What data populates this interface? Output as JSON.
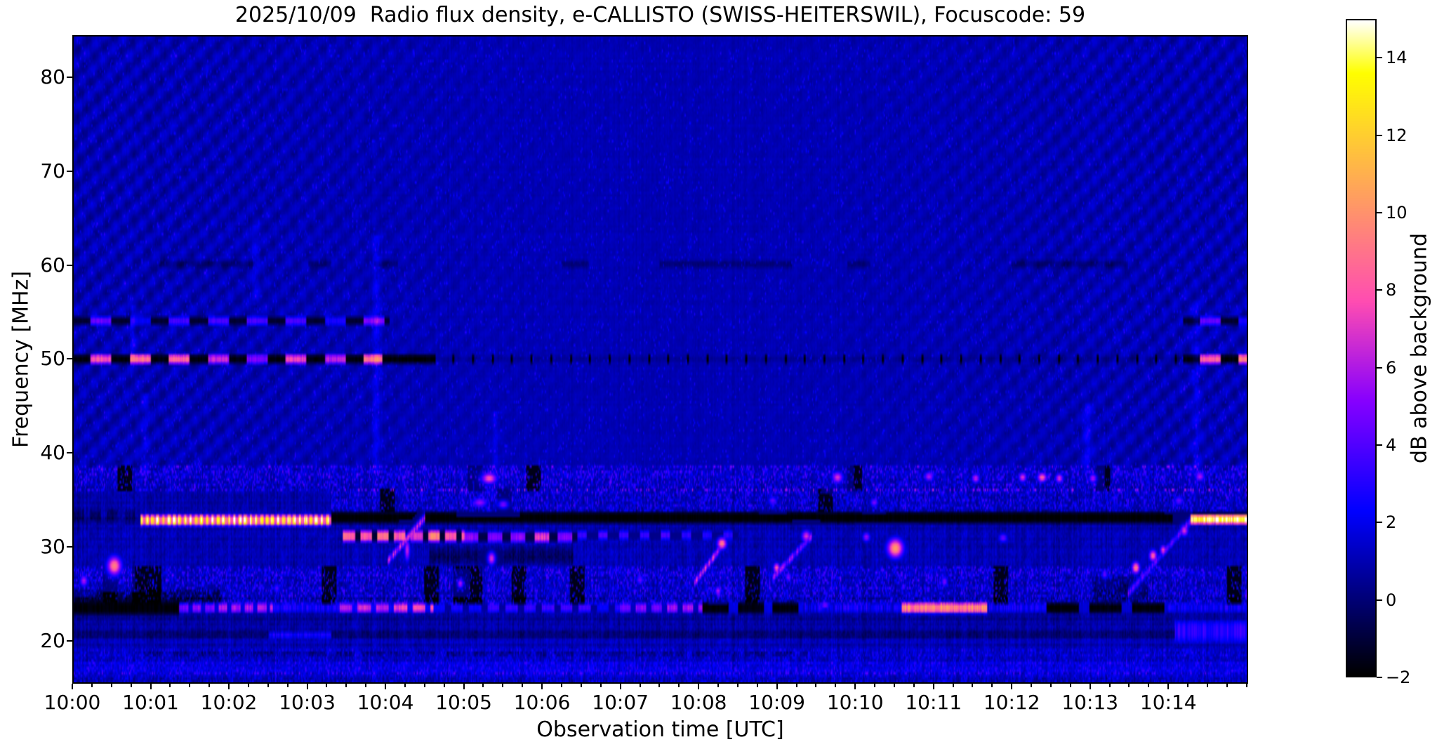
{
  "chart_data": {
    "type": "heatmap",
    "subtype": "radio-spectrogram",
    "title": "2025/10/09  Radio flux density, e-CALLISTO (SWISS-HEITERSWIL), Focuscode: 59",
    "meta": {
      "date": "2025/10/09",
      "network": "e-CALLISTO",
      "station": "SWISS-HEITERSWIL",
      "focuscode": "59"
    },
    "xlabel": "Observation time [UTC]",
    "ylabel": "Frequency [MHz]",
    "x_start": "10:00",
    "x_range_minutes": [
      0,
      15.02
    ],
    "x_ticks": [
      "10:00",
      "10:01",
      "10:02",
      "10:03",
      "10:04",
      "10:05",
      "10:06",
      "10:07",
      "10:08",
      "10:09",
      "10:10",
      "10:11",
      "10:12",
      "10:13",
      "10:14"
    ],
    "x_minor_interval_min": 0.25,
    "y_ticks": [
      80,
      70,
      60,
      50,
      40,
      30,
      20
    ],
    "y_range_mhz": [
      15.44,
      84.48
    ],
    "grid": "off",
    "colorbar": {
      "label": "dB above background",
      "ticks": [
        14,
        12,
        10,
        8,
        6,
        4,
        2,
        0,
        -2
      ],
      "vmin": -2,
      "vmax": 15,
      "colormap": "gnuplot2",
      "colormap_samples": {
        "-2": "#000000",
        "0": "#000078",
        "2": "#0000f0",
        "4": "#5200ff",
        "6": "#b01ae6",
        "8": "#ff56aa",
        "10": "#ff946b",
        "12": "#ffcf30",
        "14": "#ffff40",
        "15": "#ffffff"
      }
    },
    "background_model": {
      "base_db": 0.95,
      "noise_db": 0.3,
      "boundary_mhz": 38,
      "wave_amp_db": 0.28,
      "wave_fade_center": true,
      "column_noise_lower_db": 0.45,
      "column_noise_upper_db": 0.16,
      "description": "dark blue background with wavy diagonal interference moire above 38 MHz and strong vertical striation noise below 38 MHz"
    },
    "features": [
      {
        "type": "speckle",
        "t0": 0,
        "t1": 15.02,
        "f0": 38.5,
        "f1": 84,
        "amp": 1.0,
        "p": 0.06,
        "note": "sparse faint blue dots in upper band"
      },
      {
        "type": "speckle",
        "t0": 0,
        "t1": 15.02,
        "f0": 36.2,
        "f1": 38.2,
        "amp": 1.6,
        "p": 0.4,
        "blackp": 0.02,
        "note": "noisy RFI band ~37 MHz"
      },
      {
        "type": "speckle",
        "t0": 3.3,
        "t1": 15.02,
        "f0": 33.9,
        "f1": 35.9,
        "amp": 1.4,
        "p": 0.45,
        "blackp": 0.03,
        "note": "noise band above 33 MHz line"
      },
      {
        "type": "speckle",
        "t0": 0,
        "t1": 15.02,
        "f0": 24.0,
        "f1": 27.6,
        "amp": 1.5,
        "p": 0.45,
        "blackp": 0.05,
        "note": "speckled 24-27.5 MHz region with black dropouts"
      },
      {
        "type": "speckle",
        "t0": 0,
        "t1": 15.02,
        "f0": 16.3,
        "f1": 18.6,
        "amp": 0.9,
        "p": 0.4
      },
      {
        "type": "speckle",
        "t0": 0,
        "t1": 15.02,
        "f0": 14.8,
        "f1": 16.2,
        "amp": 0.8,
        "p": 0.5
      },
      {
        "type": "band",
        "f": 22.3,
        "hw": 0.35,
        "t0": 0,
        "t1": 15.02,
        "v": -0.5,
        "mode": "add"
      },
      {
        "type": "band",
        "f": 24.2,
        "hw": 0.3,
        "t0": 0,
        "t1": 15.02,
        "v": -0.4,
        "mode": "add"
      },
      {
        "type": "band",
        "f": 20.4,
        "hw": 0.45,
        "t0": 0,
        "t1": 15.02,
        "v": -0.8,
        "mode": "add",
        "note": "dark lane ~20 MHz"
      },
      {
        "type": "band",
        "f": 18.4,
        "hw": 0.3,
        "t0": 0.9,
        "t1": 9.4,
        "v": -1.0,
        "mode": "add",
        "on": 15,
        "off": 6,
        "gapv": -0.2,
        "note": "dark dashed line ~18 MHz"
      },
      {
        "type": "band",
        "f": 16.9,
        "hw": 0.8,
        "t0": 0,
        "t1": 15.02,
        "v": 0.5,
        "mode": "add",
        "note": "brighter blue strip near bottom"
      },
      {
        "type": "band",
        "f": 15.0,
        "hw": 0.7,
        "t0": 0,
        "t1": 15.02,
        "v": -0.3,
        "mode": "add"
      },
      {
        "type": "band",
        "f": 60.2,
        "hw": 0.4,
        "v": -1.0,
        "mode": "add",
        "segments": [
          [
            1.1,
            2.3
          ],
          [
            3.0,
            3.3
          ],
          [
            3.85,
            4.15
          ],
          [
            6.25,
            6.6
          ],
          [
            7.5,
            9.2
          ],
          [
            9.9,
            10.2
          ],
          [
            12.0,
            13.5
          ]
        ],
        "note": "faint dark dashes at 60 MHz"
      },
      {
        "type": "band",
        "f": 54.1,
        "hw": 0.45,
        "t0": 0,
        "t1": 4.05,
        "v": 3.6,
        "vjit": 1.4,
        "on": 16,
        "off": 14,
        "ph": 17,
        "gapv": -1.2,
        "mode": "set",
        "note": "blue dashed carrier 54 MHz"
      },
      {
        "type": "band",
        "f": 54.1,
        "hw": 0.45,
        "t0": 14.2,
        "t1": 15.02,
        "v": 3.6,
        "vjit": 1.0,
        "on": 16,
        "off": 14,
        "ph": 17,
        "gapv": -1.2,
        "mode": "set"
      },
      {
        "type": "band",
        "f": 50.0,
        "hw": 0.5,
        "t0": 0,
        "t1": 3.95,
        "v": 7.2,
        "vjit": 2.4,
        "on": 16,
        "off": 14,
        "ph": 17,
        "gapv": -1.8,
        "mode": "set",
        "note": "bright magenta dashed carrier 50 MHz"
      },
      {
        "type": "band",
        "f": 50.0,
        "hw": 0.5,
        "t0": 3.95,
        "t1": 4.6,
        "v": -1.9,
        "mode": "set"
      },
      {
        "type": "band",
        "f": 50.0,
        "hw": 0.4,
        "t0": 4.6,
        "t1": 14.2,
        "v": -0.4,
        "mode": "add"
      },
      {
        "type": "band",
        "f": 50.0,
        "hw": 0.5,
        "t0": 4.6,
        "t1": 14.2,
        "v": -2,
        "mode": "set",
        "on": 1.6,
        "off": 13.4,
        "gapv": null,
        "note": "periodic short black ticks on 50 MHz lane"
      },
      {
        "type": "band",
        "f": 50.0,
        "hw": 0.5,
        "t0": 14.2,
        "t1": 15.02,
        "v": 7.5,
        "vjit": 2.0,
        "on": 16,
        "off": 14,
        "ph": 17,
        "gapv": -1.8,
        "mode": "set"
      },
      {
        "type": "band",
        "f": 33.2,
        "hw": 0.7,
        "t0": 0,
        "t1": 0.85,
        "v": -1.2,
        "mode": "add",
        "on": 8,
        "off": 5,
        "gapv": -0.3
      },
      {
        "type": "band",
        "f": 32.7,
        "hw": 0.55,
        "t0": 0.85,
        "t1": 3.3,
        "v": 14.3,
        "vjit": 1.2,
        "on": 2.1,
        "off": 2.1,
        "gapv": 8.5,
        "mode": "set",
        "note": "saturated yellow-white oscillating emission 33 MHz 10:01-10:03.3"
      },
      {
        "type": "band",
        "f": 33.0,
        "hw": 0.65,
        "t0": 3.3,
        "t1": 15.02,
        "v": -2,
        "mode": "set",
        "note": "black suppressed band 33 MHz after 10:03.3"
      },
      {
        "type": "band",
        "f": 31.0,
        "hw": 0.6,
        "t0": 3.45,
        "t1": 5.0,
        "v": 7.8,
        "vjit": 1.8,
        "on": 9,
        "off": 4,
        "gapv": -1.2,
        "mode": "set",
        "note": "orange dashes 31 MHz"
      },
      {
        "type": "band",
        "f": 30.9,
        "hw": 0.55,
        "t0": 5.0,
        "t1": 6.45,
        "v": 6.2,
        "vjit": 1.6,
        "on": 11,
        "off": 7,
        "gapv": -0.8,
        "mode": "set"
      },
      {
        "type": "band",
        "f": 31.1,
        "hw": 0.45,
        "t0": 6.45,
        "t1": 8.5,
        "v": 2.8,
        "vjit": 1.2,
        "on": 7,
        "off": 9,
        "gapv": 0.3,
        "mode": "set"
      },
      {
        "type": "band",
        "f": 28.9,
        "hw": 0.9,
        "t0": 4.55,
        "t1": 6.4,
        "v": -1.4,
        "mode": "add"
      },
      {
        "type": "band",
        "f": 24.4,
        "hw": 0.9,
        "t0": 0,
        "t1": 1.9,
        "v": -1.6,
        "mode": "add"
      },
      {
        "type": "band",
        "f": 25.3,
        "hw": 1.4,
        "t0": 13.05,
        "t1": 13.75,
        "v": -1.5,
        "mode": "add"
      },
      {
        "type": "band",
        "f": 23.3,
        "hw": 0.8,
        "t0": 0,
        "t1": 1.35,
        "v": -1.9,
        "mode": "set",
        "note": "black segment 23 MHz"
      },
      {
        "type": "band",
        "f": 23.3,
        "hw": 0.5,
        "t0": 1.35,
        "t1": 2.55,
        "v": 5.0,
        "vjit": 1.3,
        "on": 7,
        "off": 3,
        "gapv": 1.8,
        "mode": "set"
      },
      {
        "type": "band",
        "f": 23.3,
        "hw": 0.45,
        "t0": 2.55,
        "t1": 3.4,
        "v": 2.6,
        "vjit": 0.9,
        "mode": "set"
      },
      {
        "type": "band",
        "f": 23.3,
        "hw": 0.5,
        "t0": 3.4,
        "t1": 4.6,
        "v": 6.3,
        "vjit": 1.4,
        "on": 10,
        "off": 4,
        "gapv": 2.5,
        "mode": "set",
        "note": "pink streak 23 MHz"
      },
      {
        "type": "band",
        "f": 23.3,
        "hw": 0.45,
        "t0": 4.6,
        "t1": 7.0,
        "v": 2.6,
        "vjit": 1.1,
        "on": 9,
        "off": 5,
        "gapv": 0.6,
        "mode": "set"
      },
      {
        "type": "band",
        "f": 23.3,
        "hw": 0.5,
        "t0": 7.0,
        "t1": 8.05,
        "v": 4.8,
        "vjit": 1.4,
        "on": 8,
        "off": 4,
        "gapv": 1.2,
        "mode": "set"
      },
      {
        "type": "band",
        "f": 23.3,
        "hw": 0.65,
        "t0": 8.05,
        "t1": 9.35,
        "v": -1.8,
        "vjit": 0.3,
        "on": 20,
        "off": 7,
        "gapv": 1.8,
        "mode": "set"
      },
      {
        "type": "band",
        "f": 23.3,
        "hw": 0.45,
        "t0": 9.35,
        "t1": 10.6,
        "v": 2.2,
        "vjit": 1.2,
        "mode": "set"
      },
      {
        "type": "band",
        "f": 23.3,
        "hw": 0.55,
        "t0": 10.6,
        "t1": 11.7,
        "v": 9.3,
        "vjit": 1.2,
        "mode": "set",
        "note": "bright orange streak 23 MHz 10:10.6-10:11.7"
      },
      {
        "type": "band",
        "f": 23.3,
        "hw": 0.45,
        "t0": 11.7,
        "t1": 12.45,
        "v": 2.3,
        "vjit": 1.0,
        "mode": "set"
      },
      {
        "type": "band",
        "f": 23.3,
        "hw": 0.6,
        "t0": 12.45,
        "t1": 14.0,
        "v": -1.9,
        "vjit": 0.3,
        "on": 25,
        "off": 8,
        "gapv": 1.5,
        "mode": "set"
      },
      {
        "type": "band",
        "f": 23.3,
        "hw": 0.45,
        "t0": 14.0,
        "t1": 15.02,
        "v": 2.2,
        "vjit": 0.9,
        "mode": "set"
      },
      {
        "type": "band",
        "f": 20.4,
        "hw": 0.35,
        "t0": 2.5,
        "t1": 3.3,
        "v": 2.6,
        "vjit": 0.7,
        "mode": "set"
      },
      {
        "type": "band",
        "f": 20.8,
        "hw": 1.1,
        "t0": 14.1,
        "t1": 15.02,
        "v": 3.0,
        "vjit": 0.8,
        "mode": "set",
        "note": "blue patch ~20 MHz bottom right"
      },
      {
        "type": "blob",
        "t": 0.52,
        "f": 27.8,
        "rt": 0.09,
        "rf": 1.0,
        "v": 9.5,
        "note": "orange blob 10:00.5"
      },
      {
        "type": "blob",
        "t": 0.13,
        "f": 26.2,
        "rt": 0.05,
        "rf": 0.6,
        "v": 6.0
      },
      {
        "type": "blob",
        "t": 5.32,
        "f": 37.2,
        "rt": 0.1,
        "rf": 0.6,
        "v": 8.0
      },
      {
        "type": "blob",
        "t": 9.78,
        "f": 37.3,
        "rt": 0.07,
        "rf": 0.6,
        "v": 7.0
      },
      {
        "type": "blob",
        "t": 10.95,
        "f": 37.4,
        "rt": 0.06,
        "rf": 0.5,
        "v": 6.0
      },
      {
        "type": "blob",
        "t": 11.55,
        "f": 37.2,
        "rt": 0.05,
        "rf": 0.5,
        "v": 6.5
      },
      {
        "type": "blob",
        "t": 12.15,
        "f": 37.3,
        "rt": 0.05,
        "rf": 0.5,
        "v": 7.0
      },
      {
        "type": "blob",
        "t": 12.4,
        "f": 37.3,
        "rt": 0.06,
        "rf": 0.5,
        "v": 8.5
      },
      {
        "type": "blob",
        "t": 12.62,
        "f": 37.2,
        "rt": 0.05,
        "rf": 0.5,
        "v": 7.0
      },
      {
        "type": "blob",
        "t": 13.05,
        "f": 37.2,
        "rt": 0.05,
        "rf": 0.5,
        "v": 6.0
      },
      {
        "type": "blob",
        "t": 14.42,
        "f": 37.4,
        "rt": 0.06,
        "rf": 0.5,
        "v": 6.0
      },
      {
        "type": "blob",
        "t": 5.2,
        "f": 34.6,
        "rt": 0.1,
        "rf": 0.5,
        "v": 5.5
      },
      {
        "type": "blob",
        "t": 5.5,
        "f": 34.4,
        "rt": 0.07,
        "rf": 0.45,
        "v": 5.0
      },
      {
        "type": "blob",
        "t": 8.95,
        "f": 34.8,
        "rt": 0.06,
        "rf": 0.45,
        "v": 4.5
      },
      {
        "type": "blob",
        "t": 10.25,
        "f": 34.6,
        "rt": 0.05,
        "rf": 0.45,
        "v": 5.0
      },
      {
        "type": "blob",
        "t": 14.15,
        "f": 34.8,
        "rt": 0.06,
        "rf": 0.5,
        "v": 4.5
      },
      {
        "type": "blob",
        "t": 10.52,
        "f": 29.7,
        "rt": 0.1,
        "rf": 1.0,
        "v": 10.5,
        "note": "strong orange blob 10:10.5 ~30 MHz"
      },
      {
        "type": "blob",
        "t": 10.15,
        "f": 30.9,
        "rt": 0.05,
        "rf": 0.5,
        "v": 5.5
      },
      {
        "type": "blob",
        "t": 11.9,
        "f": 30.8,
        "rt": 0.06,
        "rf": 0.5,
        "v": 4.5
      },
      {
        "type": "blob",
        "t": 5.35,
        "f": 28.6,
        "rt": 0.05,
        "rf": 0.7,
        "v": 7.0
      },
      {
        "type": "blob",
        "t": 4.95,
        "f": 25.9,
        "rt": 0.04,
        "rf": 0.5,
        "v": 6.0
      },
      {
        "type": "blob",
        "t": 8.25,
        "f": 25.1,
        "rt": 0.04,
        "rf": 0.5,
        "v": 6.0
      },
      {
        "type": "blob",
        "t": 9.15,
        "f": 26.6,
        "rt": 0.04,
        "rf": 0.5,
        "v": 5.0
      },
      {
        "type": "blob",
        "t": 11.15,
        "f": 26.1,
        "rt": 0.04,
        "rf": 0.5,
        "v": 5.0
      },
      {
        "type": "blob",
        "t": 13.2,
        "f": 26.9,
        "rt": 0.04,
        "rf": 0.5,
        "v": 4.5
      },
      {
        "type": "blob",
        "t": 9.62,
        "f": 23.6,
        "rt": 0.06,
        "rf": 0.4,
        "v": 5.0
      },
      {
        "type": "blob",
        "t": 2.6,
        "f": 25.4,
        "rt": 0.04,
        "rf": 0.5,
        "v": 4.0
      },
      {
        "type": "blob",
        "t": 7.25,
        "f": 26.3,
        "rt": 0.05,
        "rf": 0.5,
        "v": 4.5
      },
      {
        "type": "drift",
        "t0": 4.02,
        "f0": 28.3,
        "t1": 4.5,
        "f1": 33.0,
        "w": 0.5,
        "v": 6.5,
        "note": "drifting burst 10:04"
      },
      {
        "type": "blob",
        "t": 4.27,
        "f": 29.5,
        "rt": 0.035,
        "rf": 1.2,
        "v": 6.5
      },
      {
        "type": "drift",
        "t0": 7.95,
        "f0": 26.0,
        "t1": 8.35,
        "f1": 30.5,
        "w": 0.5,
        "v": 7.0,
        "note": "drifting burst 10:08"
      },
      {
        "type": "blob",
        "t": 8.3,
        "f": 30.2,
        "rt": 0.06,
        "rf": 0.6,
        "v": 9.5
      },
      {
        "type": "drift",
        "t0": 8.95,
        "f0": 26.5,
        "t1": 9.45,
        "f1": 31.0,
        "w": 0.5,
        "v": 5.5,
        "note": "drifting burst 10:09"
      },
      {
        "type": "blob",
        "t": 9.38,
        "f": 31.0,
        "rt": 0.06,
        "rf": 0.6,
        "v": 7.0
      },
      {
        "type": "blob",
        "t": 9.0,
        "f": 27.6,
        "rt": 0.04,
        "rf": 0.5,
        "v": 8.5
      },
      {
        "type": "drift",
        "t0": 13.5,
        "f0": 24.8,
        "t1": 14.3,
        "f1": 32.6,
        "w": 0.5,
        "v": 4.5,
        "note": "rising burst 10:13.5-10:14.3"
      },
      {
        "type": "blob",
        "t": 13.6,
        "f": 27.6,
        "rt": 0.05,
        "rf": 0.6,
        "v": 9.5
      },
      {
        "type": "blob",
        "t": 13.82,
        "f": 28.9,
        "rt": 0.05,
        "rf": 0.6,
        "v": 8.5
      },
      {
        "type": "blob",
        "t": 13.95,
        "f": 29.5,
        "rt": 0.04,
        "rf": 0.5,
        "v": 7.5
      },
      {
        "type": "blob",
        "t": 14.22,
        "f": 31.6,
        "rt": 0.05,
        "rf": 0.6,
        "v": 7.0
      },
      {
        "type": "band",
        "f": 32.8,
        "hw": 0.5,
        "t0": 14.3,
        "t1": 15.02,
        "v": 13.5,
        "vjit": 1.5,
        "mode": "set",
        "note": "bright yellow-white streak 33 MHz at end"
      },
      {
        "type": "vstreak",
        "t": 3.88,
        "f0": 38,
        "f1": 63,
        "w": 0.05,
        "v": 1.3
      },
      {
        "type": "vstreak",
        "t": 0.92,
        "f0": 38,
        "f1": 46,
        "w": 0.05,
        "v": 1.0
      },
      {
        "type": "vstreak",
        "t": 12.98,
        "f0": 38,
        "f1": 45,
        "w": 0.05,
        "v": 1.6
      },
      {
        "type": "vstreak",
        "t": 14.38,
        "f0": 38,
        "f1": 56,
        "w": 0.05,
        "v": 1.2
      },
      {
        "type": "vstreak",
        "t": 2.33,
        "f0": 56,
        "f1": 64,
        "w": 0.05,
        "v": 1.0
      },
      {
        "type": "vstreak",
        "t": 5.4,
        "f0": 38,
        "f1": 44,
        "w": 0.04,
        "v": 1.0
      },
      {
        "type": "vstreak",
        "t": 0.76,
        "f0": 50.5,
        "f1": 55.5,
        "w": 0.03,
        "v": 1.5
      }
    ]
  }
}
